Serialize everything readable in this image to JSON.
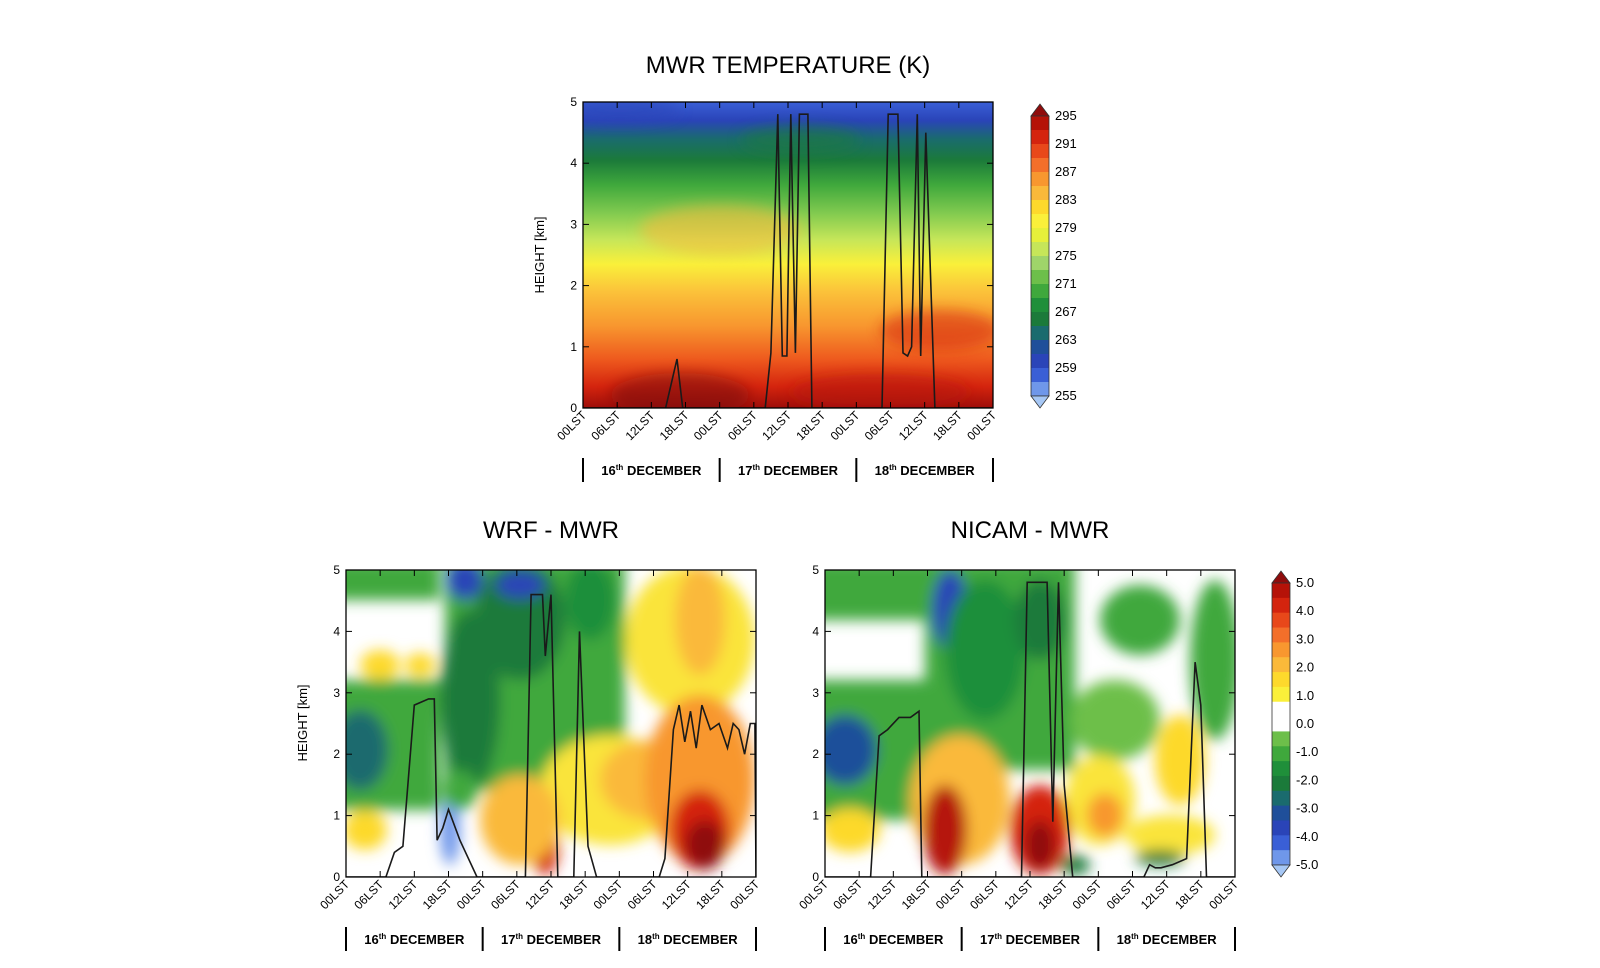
{
  "chart_data": [
    {
      "type": "heatmap",
      "title": "MWR TEMPERATURE (K)",
      "ylabel": "HEIGHT [km]",
      "ylim": [
        0,
        5
      ],
      "yticks": [
        "0",
        "1",
        "2",
        "3",
        "4",
        "5"
      ],
      "xticks": [
        "00LST",
        "06LST",
        "12LST",
        "18LST",
        "00LST",
        "06LST",
        "12LST",
        "18LST",
        "00LST",
        "06LST",
        "12LST",
        "18LST",
        "00LST"
      ],
      "days": [
        {
          "num": "16",
          "suffix": "th",
          "month": "DECEMBER"
        },
        {
          "num": "17",
          "suffix": "th",
          "month": "DECEMBER"
        },
        {
          "num": "18",
          "suffix": "th",
          "month": "DECEMBER"
        }
      ],
      "colorbar": {
        "labels": [
          "295",
          "291",
          "287",
          "283",
          "279",
          "275",
          "271",
          "267",
          "263",
          "259",
          "255"
        ],
        "colors": [
          "#8f0c0c",
          "#b51208",
          "#d4240e",
          "#e8481a",
          "#f36f2a",
          "#f8972f",
          "#fab93a",
          "#fdd92c",
          "#faf03a",
          "#e6f03a",
          "#c6e659",
          "#9fd46a",
          "#6dbf4a",
          "#3fa83c",
          "#1f8f3a",
          "#1b7a3a",
          "#1a6b6e",
          "#1f4f9a",
          "#2a44b8",
          "#3a5fd6",
          "#6f97ea",
          "#a6c7f5"
        ],
        "extend": "both"
      },
      "boundary_layer_height_km": [
        [
          0,
          0
        ],
        [
          6,
          0
        ],
        [
          14.5,
          0
        ],
        [
          16.5,
          0.8
        ],
        [
          17.5,
          0
        ],
        [
          32,
          0
        ],
        [
          33,
          0.9
        ],
        [
          34.2,
          4.8
        ],
        [
          35,
          0.85
        ],
        [
          35.8,
          0.85
        ],
        [
          36.5,
          4.8
        ],
        [
          37.3,
          0.9
        ],
        [
          38,
          4.8
        ],
        [
          39.5,
          4.8
        ],
        [
          40.2,
          0
        ],
        [
          52.5,
          0
        ],
        [
          53.6,
          4.8
        ],
        [
          55.3,
          4.8
        ],
        [
          56.2,
          0.9
        ],
        [
          57,
          0.85
        ],
        [
          57.7,
          1.0
        ],
        [
          58.7,
          4.8
        ],
        [
          59.3,
          0.85
        ],
        [
          60.2,
          4.5
        ],
        [
          61.8,
          0
        ],
        [
          72,
          0
        ]
      ]
    },
    {
      "type": "heatmap",
      "title": "WRF - MWR",
      "ylabel": "HEIGHT [km]",
      "ylim": [
        0,
        5
      ],
      "yticks": [
        "0",
        "1",
        "2",
        "3",
        "4",
        "5"
      ],
      "xticks": [
        "00LST",
        "06LST",
        "12LST",
        "18LST",
        "00LST",
        "06LST",
        "12LST",
        "18LST",
        "00LST",
        "06LST",
        "12LST",
        "18LST",
        "00LST"
      ],
      "days": [
        {
          "num": "16",
          "suffix": "th",
          "month": "DECEMBER"
        },
        {
          "num": "17",
          "suffix": "th",
          "month": "DECEMBER"
        },
        {
          "num": "18",
          "suffix": "th",
          "month": "DECEMBER"
        }
      ],
      "boundary_layer_height_km": [
        [
          0,
          0
        ],
        [
          7,
          0
        ],
        [
          8.5,
          0.4
        ],
        [
          10,
          0.5
        ],
        [
          12,
          2.8
        ],
        [
          14.5,
          2.9
        ],
        [
          15.5,
          2.9
        ],
        [
          16,
          0.6
        ],
        [
          17,
          0.8
        ],
        [
          18,
          1.1
        ],
        [
          20,
          0.6
        ],
        [
          23,
          0
        ],
        [
          31.5,
          0
        ],
        [
          32.5,
          4.6
        ],
        [
          34.5,
          4.6
        ],
        [
          35,
          3.6
        ],
        [
          36,
          4.6
        ],
        [
          37.2,
          0
        ],
        [
          40,
          0
        ],
        [
          41,
          4.0
        ],
        [
          42.5,
          0.5
        ],
        [
          44,
          0
        ],
        [
          55,
          0
        ],
        [
          56,
          0.3
        ],
        [
          57.5,
          2.4
        ],
        [
          58.5,
          2.8
        ],
        [
          59.5,
          2.2
        ],
        [
          60.5,
          2.7
        ],
        [
          61.5,
          2.1
        ],
        [
          62.5,
          2.8
        ],
        [
          64,
          2.4
        ],
        [
          65.5,
          2.5
        ],
        [
          67,
          2.1
        ],
        [
          68,
          2.5
        ],
        [
          69,
          2.4
        ],
        [
          70,
          2.0
        ],
        [
          71,
          2.5
        ],
        [
          71.8,
          2.5
        ],
        [
          72,
          0
        ]
      ]
    },
    {
      "type": "heatmap",
      "title": "NICAM - MWR",
      "ylabel": "",
      "ylim": [
        0,
        5
      ],
      "yticks": [
        "0",
        "1",
        "2",
        "3",
        "4",
        "5"
      ],
      "xticks": [
        "00LST",
        "06LST",
        "12LST",
        "18LST",
        "00LST",
        "06LST",
        "12LST",
        "18LST",
        "00LST",
        "06LST",
        "12LST",
        "18LST",
        "00LST"
      ],
      "days": [
        {
          "num": "16",
          "suffix": "th",
          "month": "DECEMBER"
        },
        {
          "num": "17",
          "suffix": "th",
          "month": "DECEMBER"
        },
        {
          "num": "18",
          "suffix": "th",
          "month": "DECEMBER"
        }
      ],
      "colorbar": {
        "labels": [
          "5.0",
          "4.0",
          "3.0",
          "2.0",
          "1.0",
          "0.0",
          "-1.0",
          "-2.0",
          "-3.0",
          "-4.0",
          "-5.0"
        ],
        "colors": [
          "#8f0c0c",
          "#b51208",
          "#d4240e",
          "#e8481a",
          "#f36f2a",
          "#f8972f",
          "#fab93a",
          "#fdd92c",
          "#faf03a",
          "#ffffff",
          "#ffffff",
          "#6dbf4a",
          "#3fa83c",
          "#1f8f3a",
          "#1b7a3a",
          "#1a6b6e",
          "#1f4f9a",
          "#2a44b8",
          "#3a5fd6",
          "#6f97ea",
          "#a6c7f5"
        ],
        "extend": "both"
      },
      "boundary_layer_height_km": [
        [
          0,
          0
        ],
        [
          8,
          0
        ],
        [
          9.5,
          2.3
        ],
        [
          11,
          2.4
        ],
        [
          13,
          2.6
        ],
        [
          15,
          2.6
        ],
        [
          16.5,
          2.7
        ],
        [
          17,
          0
        ],
        [
          34.5,
          0
        ],
        [
          35.5,
          4.8
        ],
        [
          39,
          4.8
        ],
        [
          40,
          0.9
        ],
        [
          41,
          4.8
        ],
        [
          42,
          1.5
        ],
        [
          43.5,
          0
        ],
        [
          56,
          0
        ],
        [
          57,
          0.2
        ],
        [
          58,
          0.15
        ],
        [
          59,
          0.15
        ],
        [
          61,
          0.2
        ],
        [
          63.5,
          0.3
        ],
        [
          65,
          3.5
        ],
        [
          66,
          2.8
        ],
        [
          67,
          0
        ],
        [
          72,
          0
        ]
      ]
    }
  ]
}
